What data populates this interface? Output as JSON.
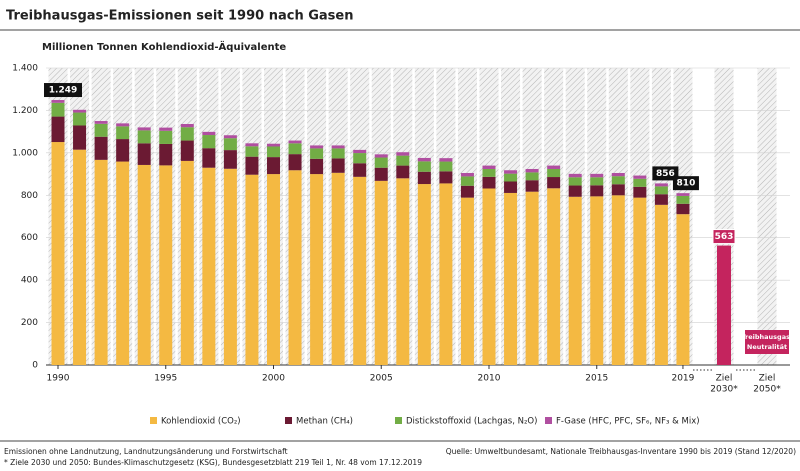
{
  "chart_data": {
    "type": "stacked-bar",
    "title": "Treibhausgas-Emissionen seit 1990 nach Gasen",
    "subtitle": "Millionen Tonnen Kohlendioxid-Äquivalente",
    "categories": [
      "1990",
      null,
      null,
      null,
      null,
      "1995",
      null,
      null,
      null,
      null,
      "2000",
      null,
      null,
      null,
      null,
      "2005",
      null,
      null,
      null,
      null,
      "2010",
      null,
      null,
      null,
      null,
      "2015",
      null,
      null,
      null,
      "2019"
    ],
    "series": [
      {
        "name": "Kohlendioxid (CO₂)",
        "color": "#f4b942",
        "values": [
          1051,
          1015,
          967,
          959,
          943,
          941,
          962,
          930,
          925,
          897,
          900,
          918,
          900,
          906,
          887,
          868,
          880,
          853,
          856,
          789,
          832,
          811,
          817,
          833,
          793,
          795,
          800,
          789,
          755,
          711
        ]
      },
      {
        "name": "Methan (CH₄)",
        "color": "#6b1a33",
        "values": [
          120,
          114,
          109,
          106,
          102,
          101,
          96,
          92,
          88,
          85,
          80,
          76,
          72,
          68,
          64,
          62,
          60,
          58,
          57,
          56,
          55,
          54,
          54,
          53,
          53,
          52,
          52,
          51,
          50,
          49
        ]
      },
      {
        "name": "Distickstoffoxid (Lachgas, N₂O)",
        "color": "#72ad45",
        "values": [
          65,
          61,
          61,
          60,
          61,
          62,
          63,
          62,
          56,
          49,
          50,
          51,
          49,
          47,
          48,
          48,
          47,
          49,
          46,
          44,
          37,
          37,
          37,
          38,
          39,
          38,
          38,
          38,
          37,
          37
        ]
      },
      {
        "name": "F-Gase (HFC, PFC, SF₆, NF₃ & Mix)",
        "color": "#b04fa0",
        "values": [
          13,
          13,
          13,
          14,
          14,
          15,
          15,
          15,
          14,
          14,
          13,
          13,
          14,
          14,
          15,
          15,
          16,
          16,
          16,
          16,
          16,
          16,
          16,
          16,
          16,
          16,
          15,
          15,
          14,
          13
        ]
      }
    ],
    "total_labels": [
      {
        "value": 1249,
        "label": "1.249"
      },
      null,
      null,
      null,
      null,
      null,
      null,
      null,
      null,
      null,
      null,
      null,
      null,
      null,
      null,
      null,
      null,
      null,
      null,
      null,
      null,
      null,
      null,
      null,
      null,
      null,
      null,
      null,
      {
        "value": 856,
        "label": "856"
      },
      {
        "value": 810,
        "label": "810"
      }
    ],
    "targets": [
      {
        "label": [
          "Ziel",
          "2030*"
        ],
        "value": 563,
        "value_label": "563"
      },
      {
        "label": [
          "Ziel",
          "2050*"
        ],
        "note": [
          "Treibhausgas-",
          "Neutralität"
        ]
      }
    ],
    "target_color": "#c4245e",
    "ylim": [
      0,
      1400
    ],
    "yticks": [
      0,
      200,
      400,
      600,
      800,
      {
        "value": 1000,
        "label": "1.000"
      },
      {
        "value": 1200,
        "label": "1.200"
      },
      {
        "value": 1400,
        "label": "1.400"
      }
    ],
    "footnotes": [
      "Emissionen ohne Landnutzung, Landnutzungsänderung und Forstwirtschaft",
      "* Ziele 2030 und 2050: Bundes-Klimaschutzgesetz (KSG), Bundesgesetzblatt 219 Teil 1, Nr. 48 vom 17.12.2019"
    ],
    "source": "Quelle: Umweltbundesamt, Nationale Treibhausgas-Inventare 1990 bis 2019 (Stand 12/2020)"
  }
}
